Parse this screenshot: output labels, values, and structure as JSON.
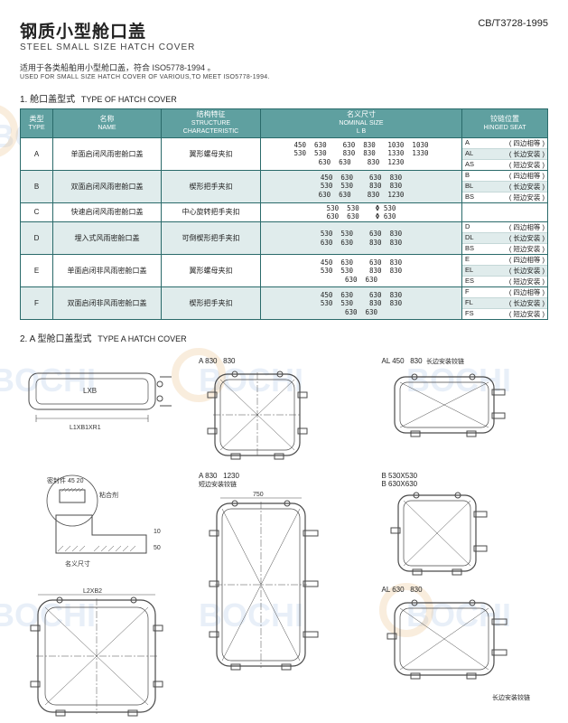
{
  "header": {
    "title_cn": "钢质小型舱口盖",
    "title_en": "STEEL SMALL SIZE HATCH COVER",
    "standard": "CB/T3728-1995",
    "note_cn": "适用于各类船舶用小型舱口盖，符合 ISO5778-1994 。",
    "note_en": "USED FOR SMALL SIZE HATCH COVER OF VARIOUS,TO MEET ISO5778-1994."
  },
  "section1": {
    "num": "1.",
    "title_cn": "舱口盖型式",
    "title_en": "TYPE OF HATCH COVER"
  },
  "table": {
    "headers": {
      "type_cn": "类型",
      "type_en": "TYPE",
      "name_cn": "名称",
      "name_en": "NAME",
      "struct_cn": "结构特征",
      "struct_en": "STRUCTURE CHARACTERISTIC",
      "nom_cn": "名义尺寸",
      "nom_en": "NOMINAL SIZE",
      "nom_lb": "L    B",
      "hinge_cn": "铰链位置",
      "hinge_en": "HINGED SEAT"
    },
    "rows": [
      {
        "type": "A",
        "name": "单面启闭风雨密舱口盖",
        "struct": "翼形螺母夹扣",
        "nom": "450  630    630  830   1030  1030\n530  530    830  830   1330  1330\n630  630    830  1230",
        "hinge": [
          [
            "A",
            "( 四边相等 )"
          ],
          [
            "AL",
            "( 长边安装 )"
          ],
          [
            "AS",
            "( 短边安装 )"
          ]
        ]
      },
      {
        "type": "B",
        "name": "双面启闭风雨密舱口盖",
        "struct": "楔形把手夹扣",
        "nom": "450  630    630  830\n530  530    830  830\n630  630    830  1230",
        "hinge": [
          [
            "B",
            "( 四边相等 )"
          ],
          [
            "BL",
            "( 长边安装 )"
          ],
          [
            "BS",
            "( 短边安装 )"
          ]
        ]
      },
      {
        "type": "C",
        "name": "快速启闭风雨密舱口盖",
        "struct": "中心旋转把手夹扣",
        "nom": "530  530    Φ 530\n630  630    Φ 630",
        "hinge": []
      },
      {
        "type": "D",
        "name": "埋入式风雨密舱口盖",
        "struct": "可倒楔形把手夹扣",
        "nom": "530  530    630  830\n630  630    830  830",
        "hinge": [
          [
            "D",
            "( 四边相等 )"
          ],
          [
            "DL",
            "( 长边安装 )"
          ],
          [
            "BS",
            "( 短边安装 )"
          ]
        ]
      },
      {
        "type": "E",
        "name": "单面启闭非风雨密舱口盖",
        "struct": "翼形螺母夹扣",
        "nom": "450  630    630  830\n530  530    830  830\n630  630",
        "hinge": [
          [
            "E",
            "( 四边相等 )"
          ],
          [
            "EL",
            "( 长边安装 )"
          ],
          [
            "ES",
            "( 短边安装 )"
          ]
        ]
      },
      {
        "type": "F",
        "name": "双面启闭非风雨密舱口盖",
        "struct": "楔形把手夹扣",
        "nom": "450  630    630  830\n530  530    830  830\n630  630",
        "hinge": [
          [
            "F",
            "( 四边相等 )"
          ],
          [
            "FL",
            "( 长边安装 )"
          ],
          [
            "FS",
            "( 短边安装 )"
          ]
        ]
      }
    ]
  },
  "section2": {
    "num": "2.",
    "title_cn": "A 型舱口盖型式",
    "title_en": "TYPE A HATCH COVER"
  },
  "diagrams": {
    "d1_lxb": "LXB",
    "d1_l1xb1xr1": "L1XB1XR1",
    "d2_a": "A 830",
    "d2_a2": "830",
    "d3_al": "AL 450",
    "d3_al2": "830",
    "d3_note": "长边安装铰链",
    "d4_seal": "密封件 45",
    "d4_seal2": "20",
    "d4_glue": "粘合剂",
    "d4_nom": "名义尺寸",
    "d5_b1": "B  530X530",
    "d5_b2": "B  630X630",
    "d6_a": "A 830",
    "d6_a2": "1230",
    "d6_750": "750",
    "d6_note": "短边安装铰链",
    "d7_l2xb2": "L2XB2",
    "d8_al": "AL 630",
    "d8_al2": "830",
    "d8_note": "长边安装铰链"
  },
  "colors": {
    "header_bg": "#5fa0a0",
    "border": "#2a6a6a",
    "stripe": "#e0ecec",
    "line": "#4a4a4a",
    "watermark": "#b0c8e8",
    "gear": "#e8b878"
  }
}
